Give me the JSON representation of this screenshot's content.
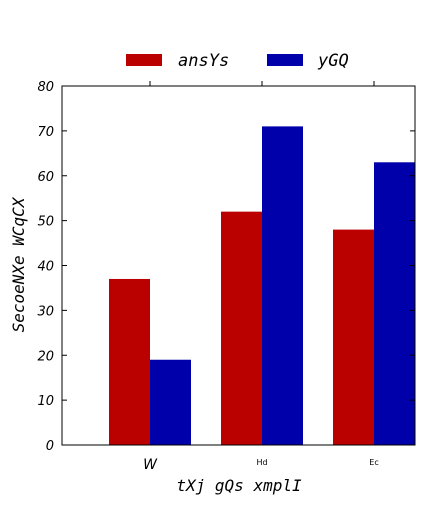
{
  "chart_data": {
    "type": "bar",
    "categories": [
      "W",
      "Hd",
      "Ec"
    ],
    "series": [
      {
        "name": "ansYs",
        "color": "#bb0000",
        "values": [
          37,
          52,
          48
        ]
      },
      {
        "name": "yGQ",
        "color": "#0000aa",
        "values": [
          19,
          71,
          63
        ]
      }
    ],
    "xlabel": "tXj gQs xmplI",
    "ylabel": "SecoeNXe WCqCX",
    "ylim": [
      0,
      80
    ],
    "yticks": [
      0,
      10,
      20,
      30,
      40,
      50,
      60,
      70,
      80
    ],
    "grid": false,
    "legend_position": "top-center"
  }
}
